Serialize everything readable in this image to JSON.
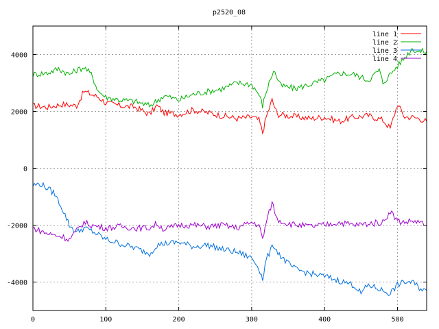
{
  "chart_data": {
    "type": "line",
    "title": "p2520_08",
    "xlabel": "",
    "ylabel": "",
    "xlim": [
      0,
      540
    ],
    "ylim": [
      -5000,
      5000
    ],
    "xticks": [
      0,
      100,
      200,
      300,
      400,
      500
    ],
    "yticks": [
      -4000,
      -2000,
      0,
      2000,
      4000
    ],
    "grid": true,
    "legend_position": "top-right",
    "series": [
      {
        "name": "line 1",
        "color": "#ff0000",
        "x": [
          0,
          20,
          40,
          60,
          70,
          80,
          90,
          100,
          120,
          140,
          160,
          170,
          180,
          200,
          220,
          240,
          260,
          280,
          300,
          310,
          315,
          320,
          328,
          335,
          350,
          380,
          400,
          420,
          440,
          460,
          480,
          490,
          500,
          510,
          520,
          530,
          540
        ],
        "y": [
          2200,
          2150,
          2250,
          2200,
          2700,
          2600,
          2500,
          2300,
          2200,
          2150,
          1900,
          2200,
          1950,
          1900,
          2050,
          1950,
          1850,
          1750,
          1800,
          1700,
          1250,
          1800,
          2400,
          1900,
          1850,
          1750,
          1800,
          1650,
          1800,
          1850,
          1700,
          1400,
          2250,
          1800,
          1800,
          1750,
          1650
        ]
      },
      {
        "name": "line 2",
        "color": "#00b000",
        "x": [
          0,
          20,
          35,
          50,
          60,
          70,
          80,
          90,
          100,
          120,
          140,
          160,
          180,
          200,
          220,
          240,
          260,
          280,
          300,
          310,
          315,
          320,
          330,
          340,
          360,
          380,
          400,
          420,
          440,
          460,
          475,
          480,
          500,
          510,
          520,
          530,
          540
        ],
        "y": [
          3300,
          3350,
          3500,
          3300,
          3450,
          3550,
          3300,
          2700,
          2500,
          2400,
          2350,
          2200,
          2550,
          2400,
          2600,
          2700,
          2800,
          3000,
          2950,
          2600,
          2200,
          2700,
          3450,
          2900,
          2800,
          2950,
          3100,
          3350,
          3300,
          3100,
          3450,
          3000,
          3600,
          3900,
          4200,
          4100,
          4100
        ]
      },
      {
        "name": "line 3",
        "color": "#0070e0",
        "x": [
          0,
          10,
          20,
          30,
          40,
          50,
          60,
          70,
          80,
          90,
          100,
          120,
          140,
          160,
          170,
          180,
          200,
          220,
          240,
          260,
          280,
          300,
          310,
          315,
          320,
          330,
          340,
          350,
          360,
          380,
          400,
          420,
          440,
          450,
          460,
          480,
          490,
          500,
          510,
          520,
          530,
          540
        ],
        "y": [
          -600,
          -550,
          -700,
          -900,
          -1400,
          -2000,
          -2250,
          -2100,
          -2200,
          -2350,
          -2500,
          -2650,
          -2800,
          -3000,
          -2700,
          -2650,
          -2600,
          -2750,
          -2700,
          -2850,
          -2950,
          -3150,
          -3500,
          -3900,
          -3200,
          -2700,
          -3100,
          -3350,
          -3550,
          -3700,
          -3800,
          -3950,
          -4100,
          -4400,
          -4100,
          -4300,
          -4400,
          -4100,
          -4000,
          -4000,
          -4200,
          -4300
        ]
      },
      {
        "name": "line 4",
        "color": "#a000d0",
        "x": [
          0,
          20,
          40,
          50,
          60,
          70,
          80,
          100,
          120,
          140,
          160,
          170,
          180,
          200,
          220,
          240,
          260,
          280,
          300,
          310,
          315,
          320,
          328,
          335,
          350,
          380,
          400,
          420,
          440,
          460,
          480,
          490,
          500,
          510,
          520,
          530,
          540
        ],
        "y": [
          -2100,
          -2300,
          -2400,
          -2500,
          -2200,
          -1900,
          -2000,
          -2100,
          -2050,
          -2100,
          -2100,
          -1950,
          -2150,
          -2000,
          -2000,
          -2050,
          -2000,
          -2100,
          -1900,
          -2000,
          -2500,
          -1900,
          -1200,
          -1800,
          -1950,
          -2050,
          -2000,
          -1900,
          -2000,
          -1950,
          -1900,
          -1500,
          -1850,
          -1900,
          -1850,
          -1900,
          -2000
        ]
      }
    ]
  }
}
